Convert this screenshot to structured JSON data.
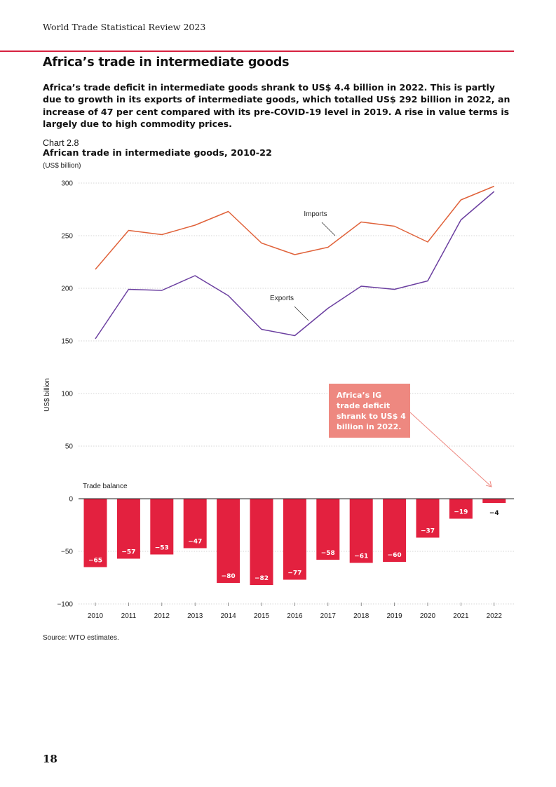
{
  "header": {
    "running_title": "World Trade Statistical Review 2023",
    "section_title": "Africa’s trade in intermediate goods",
    "lead": "Africa’s trade deficit in intermediate goods shrank to US$ 4.4 billion in 2022. This is partly due to growth in its exports of intermediate goods, which totalled US$ 292 billion in 2022, an increase of 47 per cent compared with its pre-COVID-19 level in 2019. A rise in value terms is largely due to high commodity prices."
  },
  "chart_meta": {
    "label": "Chart 2.8",
    "title": "African trade in intermediate goods, 2010-22",
    "units": "(US$ billion)"
  },
  "chart_data": {
    "type": "line",
    "title": "African trade in intermediate goods, 2010-22",
    "xlabel": "",
    "ylabel": "US$ billion",
    "ylim": [
      -100,
      300
    ],
    "yticks": [
      300,
      250,
      200,
      150,
      100,
      50,
      0,
      -50,
      -100
    ],
    "ytick_labels": [
      "300",
      "250",
      "200",
      "150",
      "100",
      "50",
      "0",
      "−50",
      "−100"
    ],
    "categories": [
      "2010",
      "2011",
      "2012",
      "2013",
      "2014",
      "2015",
      "2016",
      "2017",
      "2018",
      "2019",
      "2020",
      "2021",
      "2022"
    ],
    "grid": true,
    "series": [
      {
        "name": "Imports",
        "type": "line",
        "color": "#e0623a",
        "values": [
          218,
          255,
          251,
          260,
          273,
          243,
          232,
          239,
          263,
          259,
          244,
          284,
          297
        ]
      },
      {
        "name": "Exports",
        "type": "line",
        "color": "#6b3fa0",
        "values": [
          152,
          199,
          198,
          212,
          193,
          161,
          155,
          181,
          202,
          199,
          207,
          265,
          292
        ]
      },
      {
        "name": "Trade balance",
        "type": "bar",
        "color": "#e3213f",
        "values": [
          -65,
          -57,
          -53,
          -47,
          -80,
          -82,
          -77,
          -58,
          -61,
          -60,
          -37,
          -19,
          -4
        ],
        "labels": [
          "−65",
          "−57",
          "−53",
          "−47",
          "−80",
          "−82",
          "−77",
          "−58",
          "−61",
          "−60",
          "−37",
          "−19",
          "−4"
        ]
      }
    ],
    "annotations": {
      "callout": "Africa’s IG trade deficit shrank to US$ 4 billion in 2022.",
      "callout_color": "#ee8880"
    }
  },
  "footer": {
    "source": "Source: WTO estimates.",
    "page_number": "18"
  }
}
